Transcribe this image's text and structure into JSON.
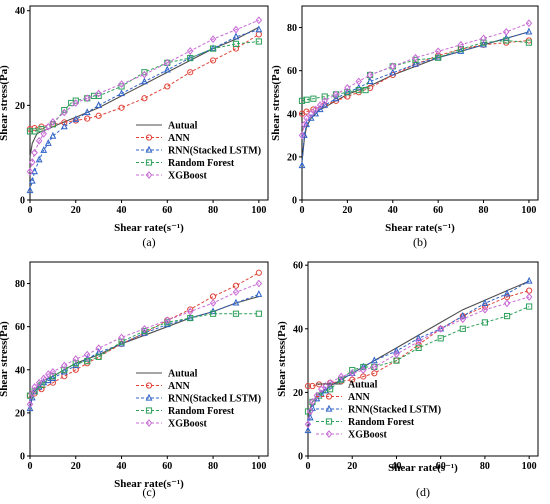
{
  "colors": {
    "Autual": "#4d4d4d",
    "ANN": "#e0443a",
    "RNN(Stacked LSTM)": "#2f63c8",
    "Random Forest": "#2ea05a",
    "XGBoost": "#c86ad6"
  },
  "chart_data": [
    {
      "type": "line",
      "panel_label": "(a)",
      "xlabel": "Shear rate(s⁻¹)",
      "ylabel": "Shear stress(Pa)",
      "xlim": [
        0,
        104
      ],
      "ylim": [
        0,
        41
      ],
      "xticks": [
        0,
        20,
        40,
        60,
        80,
        100
      ],
      "yticks": [
        0,
        20,
        40
      ],
      "legend": [
        "Autual",
        "ANN",
        "RNN(Stacked LSTM)",
        "Random Forest",
        "XGBoost"
      ],
      "series": [
        {
          "name": "Autual",
          "x": [
            0,
            1,
            2,
            3,
            5,
            8,
            10,
            15,
            20,
            25,
            30,
            40,
            50,
            60,
            70,
            80,
            90,
            100
          ],
          "y": [
            9,
            12,
            13,
            14,
            14.5,
            15,
            15.5,
            16.5,
            17.5,
            18.5,
            19.5,
            22,
            24.5,
            27,
            29.5,
            32,
            34,
            36.5
          ]
        },
        {
          "name": "ANN",
          "x": [
            0,
            2,
            5,
            10,
            15,
            20,
            25,
            30,
            40,
            50,
            60,
            70,
            80,
            90,
            100
          ],
          "y": [
            15,
            15.2,
            15.5,
            16,
            16.4,
            16.8,
            17.2,
            17.8,
            19.5,
            21.5,
            24,
            27,
            29.5,
            32,
            35
          ]
        },
        {
          "name": "RNN(Stacked LSTM)",
          "x": [
            0,
            1,
            2,
            4,
            6,
            8,
            10,
            15,
            20,
            25,
            30,
            40,
            50,
            60,
            70,
            80,
            90,
            100
          ],
          "y": [
            2,
            4,
            6,
            8.5,
            10.5,
            12,
            13.5,
            15.5,
            17,
            18.5,
            20,
            22.5,
            25,
            27.5,
            30,
            32,
            34.5,
            36
          ]
        },
        {
          "name": "Random Forest",
          "x": [
            0,
            2,
            5,
            10,
            15,
            18,
            20,
            25,
            28,
            30,
            40,
            50,
            60,
            70,
            80,
            90,
            100
          ],
          "y": [
            14.5,
            14.5,
            15,
            16,
            19,
            20.5,
            21,
            21.5,
            22,
            22,
            24,
            27,
            29,
            30,
            32,
            33,
            33.5
          ]
        },
        {
          "name": "XGBoost",
          "x": [
            0,
            1,
            2,
            4,
            6,
            8,
            10,
            15,
            20,
            25,
            30,
            40,
            50,
            60,
            70,
            80,
            90,
            100
          ],
          "y": [
            6,
            8,
            10,
            12.5,
            14,
            15.5,
            16.5,
            18.5,
            20.5,
            21.5,
            22.5,
            24.5,
            26.5,
            29,
            31.5,
            34,
            36,
            38
          ]
        }
      ]
    },
    {
      "type": "line",
      "panel_label": "(b)",
      "xlabel": "Shear rate(s⁻¹)",
      "ylabel": "Shear stress(Pa)",
      "xlim": [
        0,
        104
      ],
      "ylim": [
        0,
        90
      ],
      "xticks": [
        0,
        20,
        40,
        60,
        80,
        100
      ],
      "yticks": [
        0,
        20,
        40,
        60,
        80
      ],
      "series": [
        {
          "name": "Autual",
          "x": [
            0,
            1,
            2,
            4,
            6,
            8,
            10,
            15,
            20,
            25,
            30,
            40,
            50,
            60,
            70,
            80,
            90,
            100
          ],
          "y": [
            18,
            28,
            34,
            38,
            40,
            42,
            43,
            46,
            49,
            51,
            53,
            58,
            62,
            66,
            69,
            72,
            75,
            78
          ]
        },
        {
          "name": "ANN",
          "x": [
            0,
            2,
            5,
            10,
            15,
            20,
            25,
            30,
            40,
            50,
            60,
            70,
            80,
            90,
            100
          ],
          "y": [
            40,
            41,
            42,
            44,
            46,
            48,
            50,
            52,
            58,
            63,
            67,
            70,
            72,
            73,
            74
          ]
        },
        {
          "name": "RNN(Stacked LSTM)",
          "x": [
            0,
            1,
            2,
            4,
            6,
            8,
            10,
            15,
            20,
            25,
            30,
            40,
            50,
            60,
            70,
            80,
            90,
            100
          ],
          "y": [
            16,
            30,
            35,
            38,
            40,
            42,
            44,
            47,
            50,
            52,
            55,
            59,
            63,
            66,
            69,
            72,
            75,
            78
          ]
        },
        {
          "name": "Random Forest",
          "x": [
            0,
            2,
            5,
            10,
            15,
            20,
            25,
            28,
            30,
            40,
            50,
            60,
            70,
            80,
            90,
            100
          ],
          "y": [
            46,
            46.5,
            47,
            48,
            49,
            50,
            51,
            51,
            58,
            62,
            65,
            66,
            70,
            73,
            74,
            73
          ]
        },
        {
          "name": "XGBoost",
          "x": [
            0,
            1,
            2,
            4,
            6,
            8,
            10,
            15,
            20,
            25,
            30,
            40,
            50,
            60,
            70,
            80,
            90,
            100
          ],
          "y": [
            30,
            35,
            38,
            40,
            42,
            44,
            46,
            49,
            52,
            55,
            58,
            62,
            66,
            69,
            72,
            75,
            78,
            82
          ]
        }
      ]
    },
    {
      "type": "line",
      "panel_label": "(c)",
      "xlabel": "Shear rate(s⁻¹)",
      "ylabel": "Shear stress(Pa)",
      "xlim": [
        0,
        104
      ],
      "ylim": [
        0,
        90
      ],
      "xticks": [
        0,
        20,
        40,
        60,
        80,
        100
      ],
      "yticks": [
        0,
        20,
        40,
        60,
        80
      ],
      "legend": [
        "Autual",
        "ANN",
        "RNN(Stacked LSTM)",
        "Random Forest",
        "XGBoost"
      ],
      "series": [
        {
          "name": "Autual",
          "x": [
            0,
            1,
            2,
            4,
            6,
            8,
            10,
            15,
            20,
            25,
            30,
            40,
            50,
            60,
            70,
            80,
            90,
            100
          ],
          "y": [
            22,
            28,
            31,
            33,
            35,
            36,
            37,
            40,
            43,
            45,
            47,
            52,
            56,
            60,
            64,
            67,
            71,
            74
          ]
        },
        {
          "name": "ANN",
          "x": [
            0,
            2,
            5,
            10,
            15,
            20,
            25,
            30,
            40,
            50,
            60,
            70,
            80,
            90,
            100
          ],
          "y": [
            28,
            29,
            31,
            34,
            37,
            40,
            43,
            46,
            52,
            57,
            63,
            68,
            74,
            79,
            85
          ]
        },
        {
          "name": "RNN(Stacked LSTM)",
          "x": [
            0,
            1,
            2,
            4,
            6,
            8,
            10,
            15,
            20,
            25,
            30,
            40,
            50,
            60,
            70,
            80,
            90,
            100
          ],
          "y": [
            22,
            27,
            30,
            32,
            34,
            35,
            36,
            39,
            42,
            45,
            48,
            52,
            57,
            61,
            64,
            67,
            71,
            75
          ]
        },
        {
          "name": "Random Forest",
          "x": [
            0,
            2,
            5,
            10,
            15,
            20,
            25,
            30,
            40,
            50,
            60,
            70,
            80,
            90,
            100
          ],
          "y": [
            28,
            30,
            33,
            37,
            40,
            43,
            44,
            46,
            53,
            58,
            62,
            64,
            66,
            66,
            66
          ]
        },
        {
          "name": "XGBoost",
          "x": [
            0,
            1,
            2,
            4,
            6,
            8,
            10,
            15,
            20,
            25,
            30,
            40,
            50,
            60,
            70,
            80,
            90,
            100
          ],
          "y": [
            24,
            29,
            32,
            34,
            36,
            38,
            39,
            42,
            45,
            47,
            50,
            55,
            59,
            63,
            67,
            71,
            76,
            80
          ]
        }
      ]
    },
    {
      "type": "line",
      "panel_label": "(d)",
      "xlabel": "Shear rate(s⁻¹)",
      "ylabel": "Shear stress(Pa)",
      "xlim": [
        0,
        104
      ],
      "ylim": [
        0,
        61
      ],
      "xticks": [
        0,
        20,
        40,
        60,
        80,
        100
      ],
      "yticks": [
        0,
        20,
        40,
        60
      ],
      "legend": [
        "Autual",
        "ANN",
        "RNN(Stacked LSTM)",
        "Random Forest",
        "XGBoost"
      ],
      "series": [
        {
          "name": "Autual",
          "x": [
            0,
            1,
            2,
            4,
            6,
            8,
            10,
            15,
            20,
            25,
            30,
            40,
            50,
            60,
            70,
            80,
            90,
            100
          ],
          "y": [
            12,
            15,
            17,
            19,
            20,
            21,
            22,
            24,
            26,
            28,
            30,
            34,
            38,
            42,
            46,
            49,
            52,
            55
          ]
        },
        {
          "name": "ANN",
          "x": [
            0,
            2,
            5,
            10,
            15,
            20,
            25,
            30,
            40,
            50,
            60,
            70,
            80,
            90,
            100
          ],
          "y": [
            22,
            22,
            22.5,
            23,
            23.5,
            24,
            25,
            26,
            30,
            35,
            40,
            44,
            47,
            50,
            52
          ]
        },
        {
          "name": "RNN(Stacked LSTM)",
          "x": [
            0,
            1,
            2,
            4,
            6,
            8,
            10,
            15,
            20,
            25,
            30,
            40,
            50,
            60,
            70,
            80,
            90,
            100
          ],
          "y": [
            8,
            12,
            15,
            18,
            19.5,
            20.5,
            22,
            24,
            26,
            28,
            30,
            33,
            37,
            40,
            44,
            48,
            51,
            55
          ]
        },
        {
          "name": "Random Forest",
          "x": [
            0,
            2,
            5,
            10,
            15,
            20,
            25,
            30,
            40,
            50,
            60,
            70,
            80,
            90,
            100
          ],
          "y": [
            14,
            17,
            19,
            21,
            24,
            27,
            28,
            28,
            30,
            34,
            37,
            40,
            42,
            44,
            47
          ]
        },
        {
          "name": "XGBoost",
          "x": [
            0,
            1,
            2,
            4,
            6,
            8,
            10,
            15,
            20,
            25,
            30,
            40,
            50,
            60,
            70,
            80,
            90,
            100
          ],
          "y": [
            10,
            14,
            17,
            19,
            21,
            22,
            23,
            25,
            26,
            27,
            28,
            32,
            36,
            40,
            43,
            46,
            48,
            50
          ]
        }
      ]
    }
  ]
}
